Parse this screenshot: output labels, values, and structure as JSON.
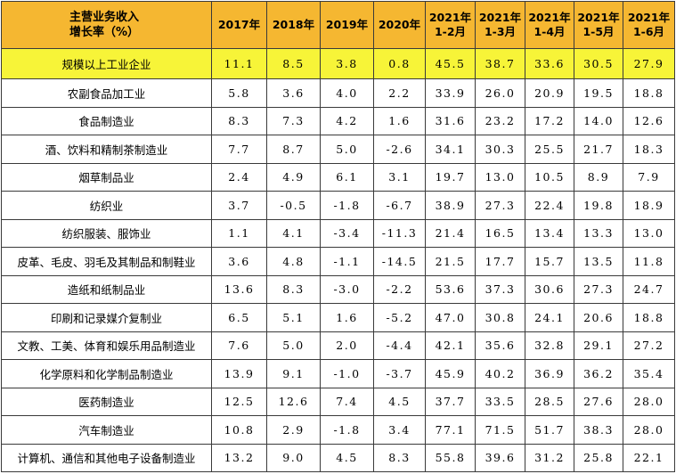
{
  "header": {
    "corner_line1": "主营业务收入",
    "corner_line2": "增长率（%）",
    "columns": [
      "2017年",
      "2018年",
      "2019年",
      "2020年",
      "2021年\n1-2月",
      "2021年\n1-3月",
      "2021年\n1-4月",
      "2021年\n1-5月",
      "2021年\n1-6月"
    ]
  },
  "rows": [
    {
      "name": "规模以上工业企业",
      "values": [
        "11.1",
        "8.5",
        "3.8",
        "0.8",
        "45.5",
        "38.7",
        "33.6",
        "30.5",
        "27.9"
      ]
    },
    {
      "name": "农副食品加工业",
      "values": [
        "5.8",
        "3.6",
        "4.0",
        "2.2",
        "33.9",
        "26.0",
        "20.9",
        "19.5",
        "18.8"
      ]
    },
    {
      "name": "食品制造业",
      "values": [
        "8.3",
        "7.3",
        "4.2",
        "1.6",
        "31.6",
        "23.2",
        "17.2",
        "14.0",
        "12.6"
      ]
    },
    {
      "name": "酒、饮料和精制茶制造业",
      "values": [
        "7.7",
        "8.7",
        "5.0",
        "-2.6",
        "34.1",
        "30.3",
        "25.5",
        "21.7",
        "18.3"
      ]
    },
    {
      "name": "烟草制品业",
      "values": [
        "2.4",
        "4.9",
        "6.1",
        "3.1",
        "19.7",
        "13.0",
        "10.5",
        "8.9",
        "7.9"
      ]
    },
    {
      "name": "纺织业",
      "values": [
        "3.7",
        "-0.5",
        "-1.8",
        "-6.7",
        "38.9",
        "27.3",
        "22.4",
        "19.8",
        "18.9"
      ]
    },
    {
      "name": "纺织服装、服饰业",
      "values": [
        "1.1",
        "4.1",
        "-3.4",
        "-11.3",
        "21.4",
        "16.5",
        "13.4",
        "13.3",
        "13.0"
      ]
    },
    {
      "name": "皮革、毛皮、羽毛及其制品和制鞋业",
      "values": [
        "3.6",
        "4.8",
        "-1.1",
        "-14.5",
        "21.5",
        "17.7",
        "15.7",
        "13.5",
        "11.8"
      ]
    },
    {
      "name": "造纸和纸制品业",
      "values": [
        "13.6",
        "8.3",
        "-3.0",
        "-2.2",
        "53.6",
        "37.3",
        "30.6",
        "27.3",
        "24.7"
      ]
    },
    {
      "name": "印刷和记录媒介复制业",
      "values": [
        "6.5",
        "5.1",
        "1.6",
        "-5.2",
        "47.0",
        "30.8",
        "24.1",
        "20.6",
        "18.8"
      ]
    },
    {
      "name": "文教、工美、体育和娱乐用品制造业",
      "values": [
        "7.6",
        "5.0",
        "2.0",
        "-4.4",
        "42.1",
        "35.6",
        "32.8",
        "29.1",
        "27.2"
      ]
    },
    {
      "name": "化学原料和化学制品制造业",
      "values": [
        "13.9",
        "9.1",
        "-1.0",
        "-3.7",
        "45.9",
        "40.2",
        "36.9",
        "36.2",
        "35.4"
      ]
    },
    {
      "name": "医药制造业",
      "values": [
        "12.5",
        "12.6",
        "7.4",
        "4.5",
        "37.7",
        "33.5",
        "28.5",
        "27.6",
        "28.0"
      ]
    },
    {
      "name": "汽车制造业",
      "values": [
        "10.8",
        "2.9",
        "-1.8",
        "3.4",
        "77.1",
        "71.5",
        "51.7",
        "38.3",
        "28.0"
      ]
    },
    {
      "name": "计算机、通信和其他电子设备制造业",
      "values": [
        "13.2",
        "9.0",
        "4.5",
        "8.3",
        "55.8",
        "39.6",
        "31.2",
        "25.8",
        "22.1"
      ]
    }
  ],
  "colors": {
    "header_bg": "#f5b731",
    "highlight_row_bg": "#f7f438",
    "border": "#3a3a3a"
  }
}
